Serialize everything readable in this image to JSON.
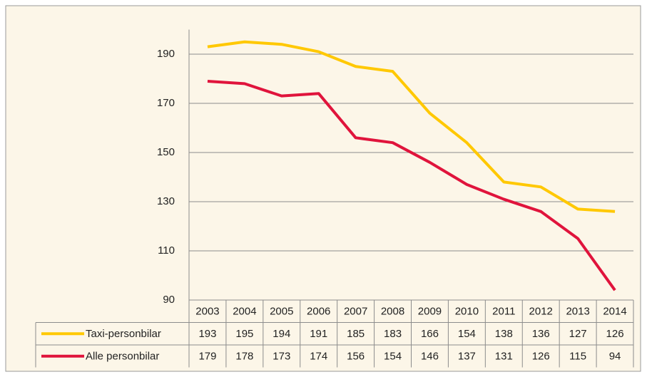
{
  "chart_data": {
    "type": "line",
    "categories": [
      "2003",
      "2004",
      "2005",
      "2006",
      "2007",
      "2008",
      "2009",
      "2010",
      "2011",
      "2012",
      "2013",
      "2014"
    ],
    "series": [
      {
        "name": "Taxi-personbilar",
        "color": "#ffc800",
        "values": [
          193,
          195,
          194,
          191,
          185,
          183,
          166,
          154,
          138,
          136,
          127,
          126
        ]
      },
      {
        "name": "Alle personbilar",
        "color": "#e0143c",
        "values": [
          179,
          178,
          173,
          174,
          156,
          154,
          146,
          137,
          131,
          126,
          115,
          94
        ]
      }
    ],
    "ylim": [
      90,
      200
    ],
    "yticks": [
      90,
      110,
      130,
      150,
      170,
      190
    ],
    "grid": true
  }
}
